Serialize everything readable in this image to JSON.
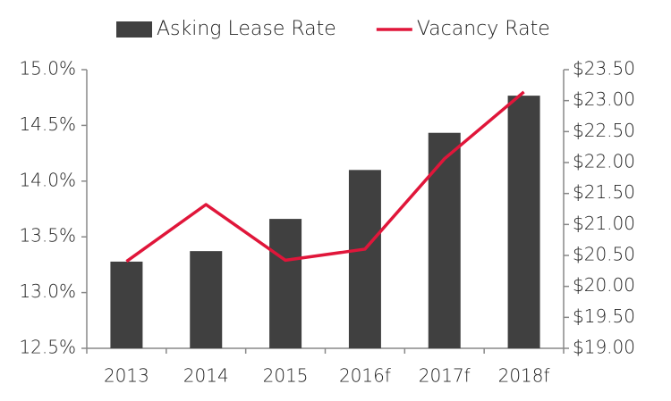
{
  "chart_data": {
    "type": "combo",
    "categories": [
      "2013",
      "2014",
      "2015",
      "2016f",
      "2017f",
      "2018f"
    ],
    "series": [
      {
        "name": "Asking Lease Rate",
        "type": "bar",
        "axis": "y2",
        "color": "#404040",
        "values": [
          20.4,
          20.57,
          21.09,
          21.88,
          22.48,
          23.08
        ]
      },
      {
        "name": "Vacancy Rate",
        "type": "line",
        "axis": "y",
        "color": "#e0163a",
        "values": [
          13.28,
          13.79,
          13.29,
          13.39,
          14.2,
          14.8
        ]
      }
    ],
    "ylim": [
      12.5,
      15.0
    ],
    "yticks": [
      {
        "value": 12.5,
        "label": "12.5%"
      },
      {
        "value": 13.0,
        "label": "13.0%"
      },
      {
        "value": 13.5,
        "label": "13.5%"
      },
      {
        "value": 14.0,
        "label": "14.0%"
      },
      {
        "value": 14.5,
        "label": "14.5%"
      },
      {
        "value": 15.0,
        "label": "15.0%"
      }
    ],
    "y2lim": [
      19.0,
      23.5
    ],
    "y2ticks": [
      {
        "value": 19.0,
        "label": "$19.00"
      },
      {
        "value": 19.5,
        "label": "$19.50"
      },
      {
        "value": 20.0,
        "label": "$20.00"
      },
      {
        "value": 20.5,
        "label": "$20.50"
      },
      {
        "value": 21.0,
        "label": "$21.00"
      },
      {
        "value": 21.5,
        "label": "$21.50"
      },
      {
        "value": 22.0,
        "label": "$22.00"
      },
      {
        "value": 22.5,
        "label": "$22.50"
      },
      {
        "value": 23.0,
        "label": "$23.00"
      },
      {
        "value": 23.5,
        "label": "$23.50"
      }
    ],
    "grid": false,
    "legend": "top"
  }
}
